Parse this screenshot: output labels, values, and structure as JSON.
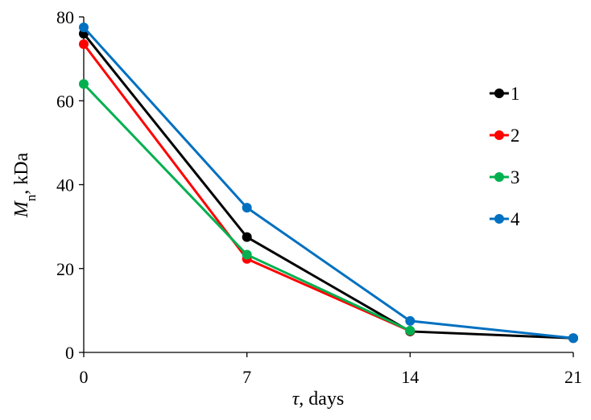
{
  "chart_data": {
    "type": "line",
    "x": [
      0,
      7,
      14,
      21
    ],
    "xticks": [
      "0",
      "7",
      "14",
      "21"
    ],
    "yticks": [
      "0",
      "20",
      "40",
      "60",
      "80"
    ],
    "xlim": [
      0,
      21
    ],
    "ylim": [
      0,
      80
    ],
    "xlabel": {
      "symbol": "τ",
      "rest": ", days"
    },
    "ylabel": {
      "symbol": "M",
      "sub": "n",
      "rest": ", kDa"
    },
    "grid": false,
    "legend_position": "right",
    "series": [
      {
        "name": "1",
        "color": "#000000",
        "values": [
          76,
          27.5,
          5,
          3.4
        ]
      },
      {
        "name": "2",
        "color": "#ff0000",
        "values": [
          73.5,
          22.3,
          5.1,
          null
        ]
      },
      {
        "name": "3",
        "color": "#00b050",
        "values": [
          64,
          23.3,
          5.2,
          null
        ]
      },
      {
        "name": "4",
        "color": "#0070c0",
        "values": [
          77.5,
          34.5,
          7.5,
          3.4
        ]
      }
    ]
  }
}
